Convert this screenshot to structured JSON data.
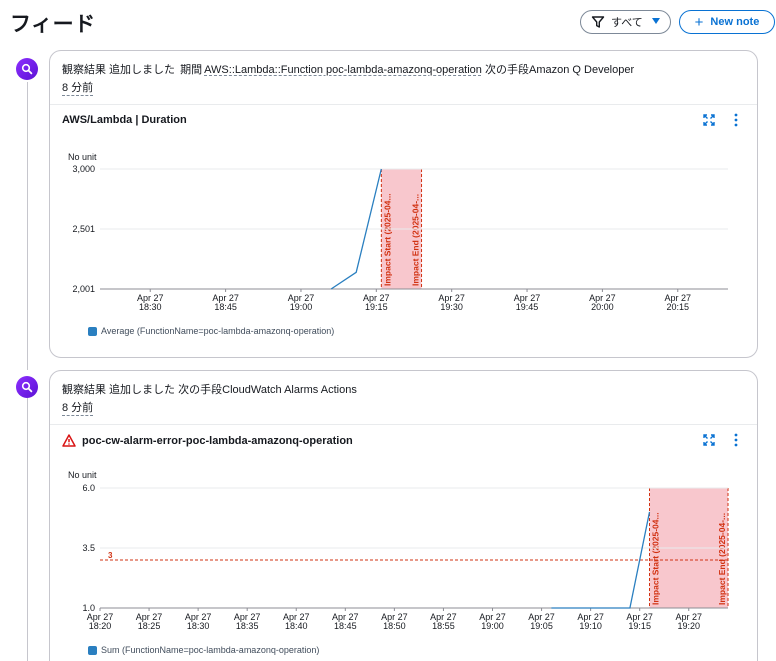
{
  "page": {
    "title": "フィード"
  },
  "toolbar": {
    "filter_label": "すべて",
    "new_note_label": "New note"
  },
  "colors": {
    "accent": "#0972d3",
    "series": "#2a7fc0",
    "impact": "#f7c1c8",
    "impact_text": "#d13212",
    "avatar": "#7b2bf0"
  },
  "feed": [
    {
      "event_prefix": "観察結果 追加しました",
      "period_label": "期間",
      "resource": "AWS::Lambda::Function poc-lambda-amazonq-operation",
      "next_label": "次の手段",
      "next_value": "Amazon Q Developer",
      "time_ago": "8 分前",
      "widget": {
        "title": "AWS/Lambda | Duration",
        "unit": "No unit",
        "legend": "Average (FunctionName=poc-lambda-amazonq-operation)",
        "expand_icon": "expand-icon",
        "more_icon": "more-vertical-icon"
      }
    },
    {
      "event_prefix": "観察結果 追加しました",
      "next_label": "次の手段",
      "next_value": "CloudWatch Alarms Actions",
      "time_ago": "8 分前",
      "widget": {
        "title": "poc-cw-alarm-error-poc-lambda-amazonq-operation",
        "alarm_icon": "warning-triangle-icon",
        "unit": "No unit",
        "legend": "Sum (FunctionName=poc-lambda-amazonq-operation)",
        "expand_icon": "expand-icon",
        "more_icon": "more-vertical-icon"
      }
    }
  ],
  "chart_data": [
    {
      "type": "line",
      "title": "AWS/Lambda | Duration",
      "ylabel": "No unit",
      "yticks": [
        "3,000",
        "2,501",
        "2,001"
      ],
      "ylim": [
        2001,
        3000
      ],
      "xticks": [
        {
          "date": "Apr 27",
          "time": "18:30"
        },
        {
          "date": "Apr 27",
          "time": "18:45"
        },
        {
          "date": "Apr 27",
          "time": "19:00"
        },
        {
          "date": "Apr 27",
          "time": "19:15"
        },
        {
          "date": "Apr 27",
          "time": "19:30"
        },
        {
          "date": "Apr 27",
          "time": "19:45"
        },
        {
          "date": "Apr 27",
          "time": "20:00"
        },
        {
          "date": "Apr 27",
          "time": "20:15"
        }
      ],
      "xlim_minutes": [
        "18:20",
        "20:25"
      ],
      "series": [
        {
          "name": "Average (FunctionName=poc-lambda-amazonq-operation)",
          "points": [
            [
              "19:06",
              2001
            ],
            [
              "19:11",
              2140
            ],
            [
              "19:16",
              3000
            ]
          ]
        }
      ],
      "impact_band": {
        "start": "19:16",
        "end": "19:24",
        "start_label": "Impact Start (2025-04...",
        "end_label": "Impact End (2025-04-..."
      }
    },
    {
      "type": "line",
      "title": "poc-cw-alarm-error-poc-lambda-amazonq-operation",
      "ylabel": "No unit",
      "yticks": [
        "6.0",
        "3.5",
        "1.0"
      ],
      "ylim": [
        1.0,
        6.0
      ],
      "threshold": {
        "value": 3,
        "label": "3"
      },
      "xticks": [
        {
          "date": "Apr 27",
          "time": "18:20"
        },
        {
          "date": "Apr 27",
          "time": "18:25"
        },
        {
          "date": "Apr 27",
          "time": "18:30"
        },
        {
          "date": "Apr 27",
          "time": "18:35"
        },
        {
          "date": "Apr 27",
          "time": "18:40"
        },
        {
          "date": "Apr 27",
          "time": "18:45"
        },
        {
          "date": "Apr 27",
          "time": "18:50"
        },
        {
          "date": "Apr 27",
          "time": "18:55"
        },
        {
          "date": "Apr 27",
          "time": "19:00"
        },
        {
          "date": "Apr 27",
          "time": "19:05"
        },
        {
          "date": "Apr 27",
          "time": "19:10"
        },
        {
          "date": "Apr 27",
          "time": "19:15"
        },
        {
          "date": "Apr 27",
          "time": "19:20"
        }
      ],
      "xlim_minutes": [
        "18:20",
        "19:24"
      ],
      "series": [
        {
          "name": "Sum (FunctionName=poc-lambda-amazonq-operation)",
          "points": [
            [
              "19:06",
              1.0
            ],
            [
              "19:14",
              1.0
            ],
            [
              "19:16",
              5.0
            ]
          ]
        }
      ],
      "impact_band": {
        "start": "19:16",
        "end": "19:24",
        "start_label": "Impact Start (2025-04...",
        "end_label": "Impact End (2025-04-..."
      }
    }
  ]
}
